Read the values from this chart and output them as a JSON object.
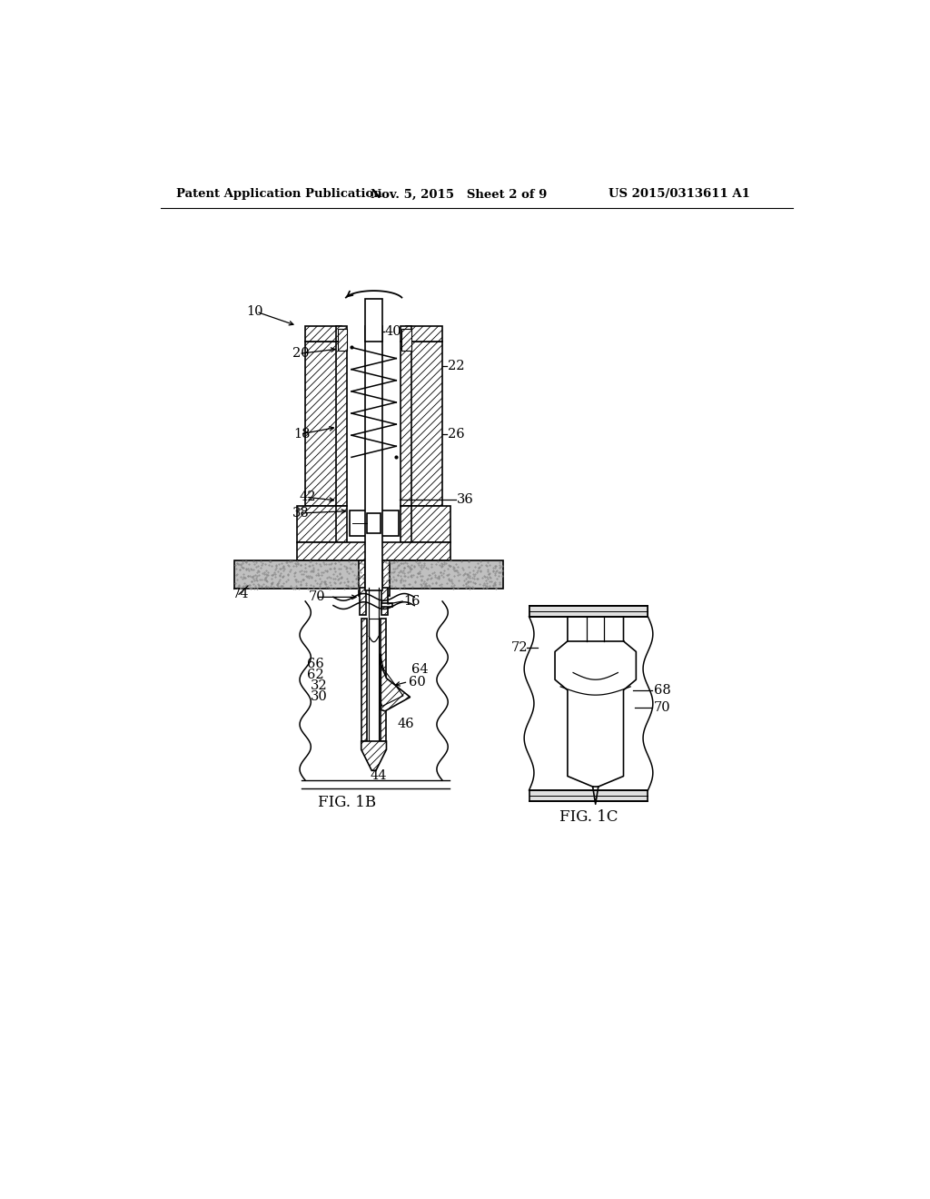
{
  "bg_color": "#ffffff",
  "header_left": "Patent Application Publication",
  "header_mid": "Nov. 5, 2015   Sheet 2 of 9",
  "header_right": "US 2015/0313611 A1",
  "fig1b_label": "FIG. 1B",
  "fig1c_label": "FIG. 1C",
  "label_10": "10",
  "label_20": "20",
  "label_22": "22",
  "label_26": "26",
  "label_18": "18",
  "label_36": "36",
  "label_38": "38",
  "label_42": "42",
  "label_40": "40",
  "label_74": "74",
  "label_16": "16",
  "label_70": "70",
  "label_72": "72",
  "label_68": "68",
  "label_66": "66",
  "label_64": "64",
  "label_62": "62",
  "label_60": "60",
  "label_32": "32",
  "label_30": "30",
  "label_46": "46",
  "label_44": "44"
}
